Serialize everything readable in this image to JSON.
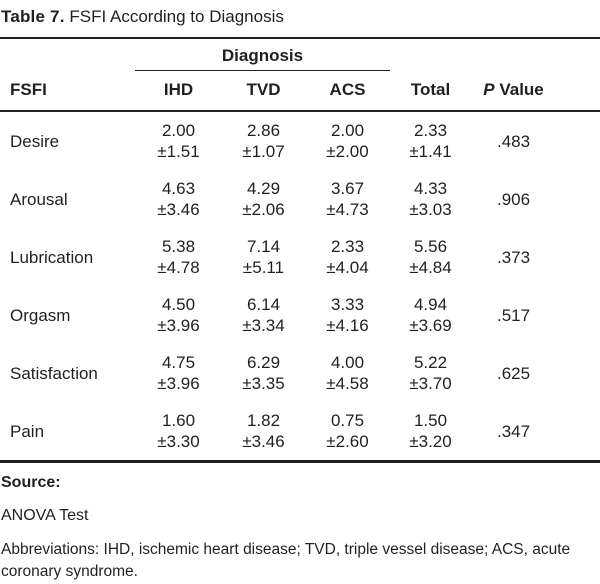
{
  "title": {
    "label": "Table 7.",
    "text": "FSFI According to Diagnosis"
  },
  "table": {
    "spanner": "Diagnosis",
    "columns": {
      "fsfi": "FSFI",
      "ihd": "IHD",
      "tvd": "TVD",
      "acs": "ACS",
      "total": "Total",
      "p_prefix": "P",
      "p_rest": "Value"
    },
    "rows": [
      {
        "label": "Desire",
        "cells": [
          {
            "mean": "2.00",
            "sd": "±1.51"
          },
          {
            "mean": "2.86",
            "sd": "±1.07"
          },
          {
            "mean": "2.00",
            "sd": "±2.00"
          },
          {
            "mean": "2.33",
            "sd": "±1.41"
          }
        ],
        "p": ".483"
      },
      {
        "label": "Arousal",
        "cells": [
          {
            "mean": "4.63",
            "sd": "±3.46"
          },
          {
            "mean": "4.29",
            "sd": "±2.06"
          },
          {
            "mean": "3.67",
            "sd": "±4.73"
          },
          {
            "mean": "4.33",
            "sd": "±3.03"
          }
        ],
        "p": ".906"
      },
      {
        "label": "Lubrication",
        "cells": [
          {
            "mean": "5.38",
            "sd": "±4.78"
          },
          {
            "mean": "7.14",
            "sd": "±5.11"
          },
          {
            "mean": "2.33",
            "sd": "±4.04"
          },
          {
            "mean": "5.56",
            "sd": "±4.84"
          }
        ],
        "p": ".373"
      },
      {
        "label": "Orgasm",
        "cells": [
          {
            "mean": "4.50",
            "sd": "±3.96"
          },
          {
            "mean": "6.14",
            "sd": "±3.34"
          },
          {
            "mean": "3.33",
            "sd": "±4.16"
          },
          {
            "mean": "4.94",
            "sd": "±3.69"
          }
        ],
        "p": ".517"
      },
      {
        "label": "Satisfaction",
        "cells": [
          {
            "mean": "4.75",
            "sd": "±3.96"
          },
          {
            "mean": "6.29",
            "sd": "±3.35"
          },
          {
            "mean": "4.00",
            "sd": "±4.58"
          },
          {
            "mean": "5.22",
            "sd": "±3.70"
          }
        ],
        "p": ".625"
      },
      {
        "label": "Pain",
        "cells": [
          {
            "mean": "1.60",
            "sd": "±3.30"
          },
          {
            "mean": "1.82",
            "sd": "±3.46"
          },
          {
            "mean": "0.75",
            "sd": "±2.60"
          },
          {
            "mean": "1.50",
            "sd": "±3.20"
          }
        ],
        "p": ".347"
      }
    ]
  },
  "footer": {
    "source_label": "Source:",
    "source_text": "ANOVA Test",
    "abbreviations": "Abbreviations: IHD, ischemic heart disease; TVD, triple vessel disease; ACS, acute coronary syndrome."
  },
  "colors": {
    "text": "#231f20",
    "rule": "#231f20",
    "background": "#ffffff"
  }
}
